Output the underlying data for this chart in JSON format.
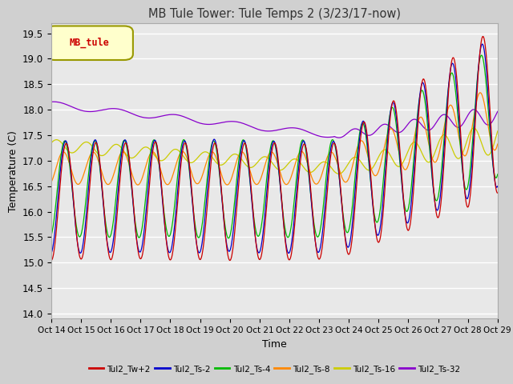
{
  "title": "MB Tule Tower: Tule Temps 2 (3/23/17-now)",
  "xlabel": "Time",
  "ylabel": "Temperature (C)",
  "ylim": [
    13.9,
    19.7
  ],
  "yticks": [
    14.0,
    14.5,
    15.0,
    15.5,
    16.0,
    16.5,
    17.0,
    17.5,
    18.0,
    18.5,
    19.0,
    19.5
  ],
  "xtick_labels": [
    "Oct 14",
    "Oct 15",
    "Oct 16",
    "Oct 17",
    "Oct 18",
    "Oct 19",
    "Oct 20",
    "Oct 21",
    "Oct 22",
    "Oct 23",
    "Oct 24",
    "Oct 25",
    "Oct 26",
    "Oct 27",
    "Oct 28",
    "Oct 29"
  ],
  "series_colors": {
    "Tul2_Tw+2": "#cc0000",
    "Tul2_Ts-2": "#0000cc",
    "Tul2_Ts-4": "#00bb00",
    "Tul2_Ts-8": "#ff8800",
    "Tul2_Ts-16": "#cccc00",
    "Tul2_Ts-32": "#8800cc"
  },
  "legend_label": "MB_tule",
  "n_points": 960
}
